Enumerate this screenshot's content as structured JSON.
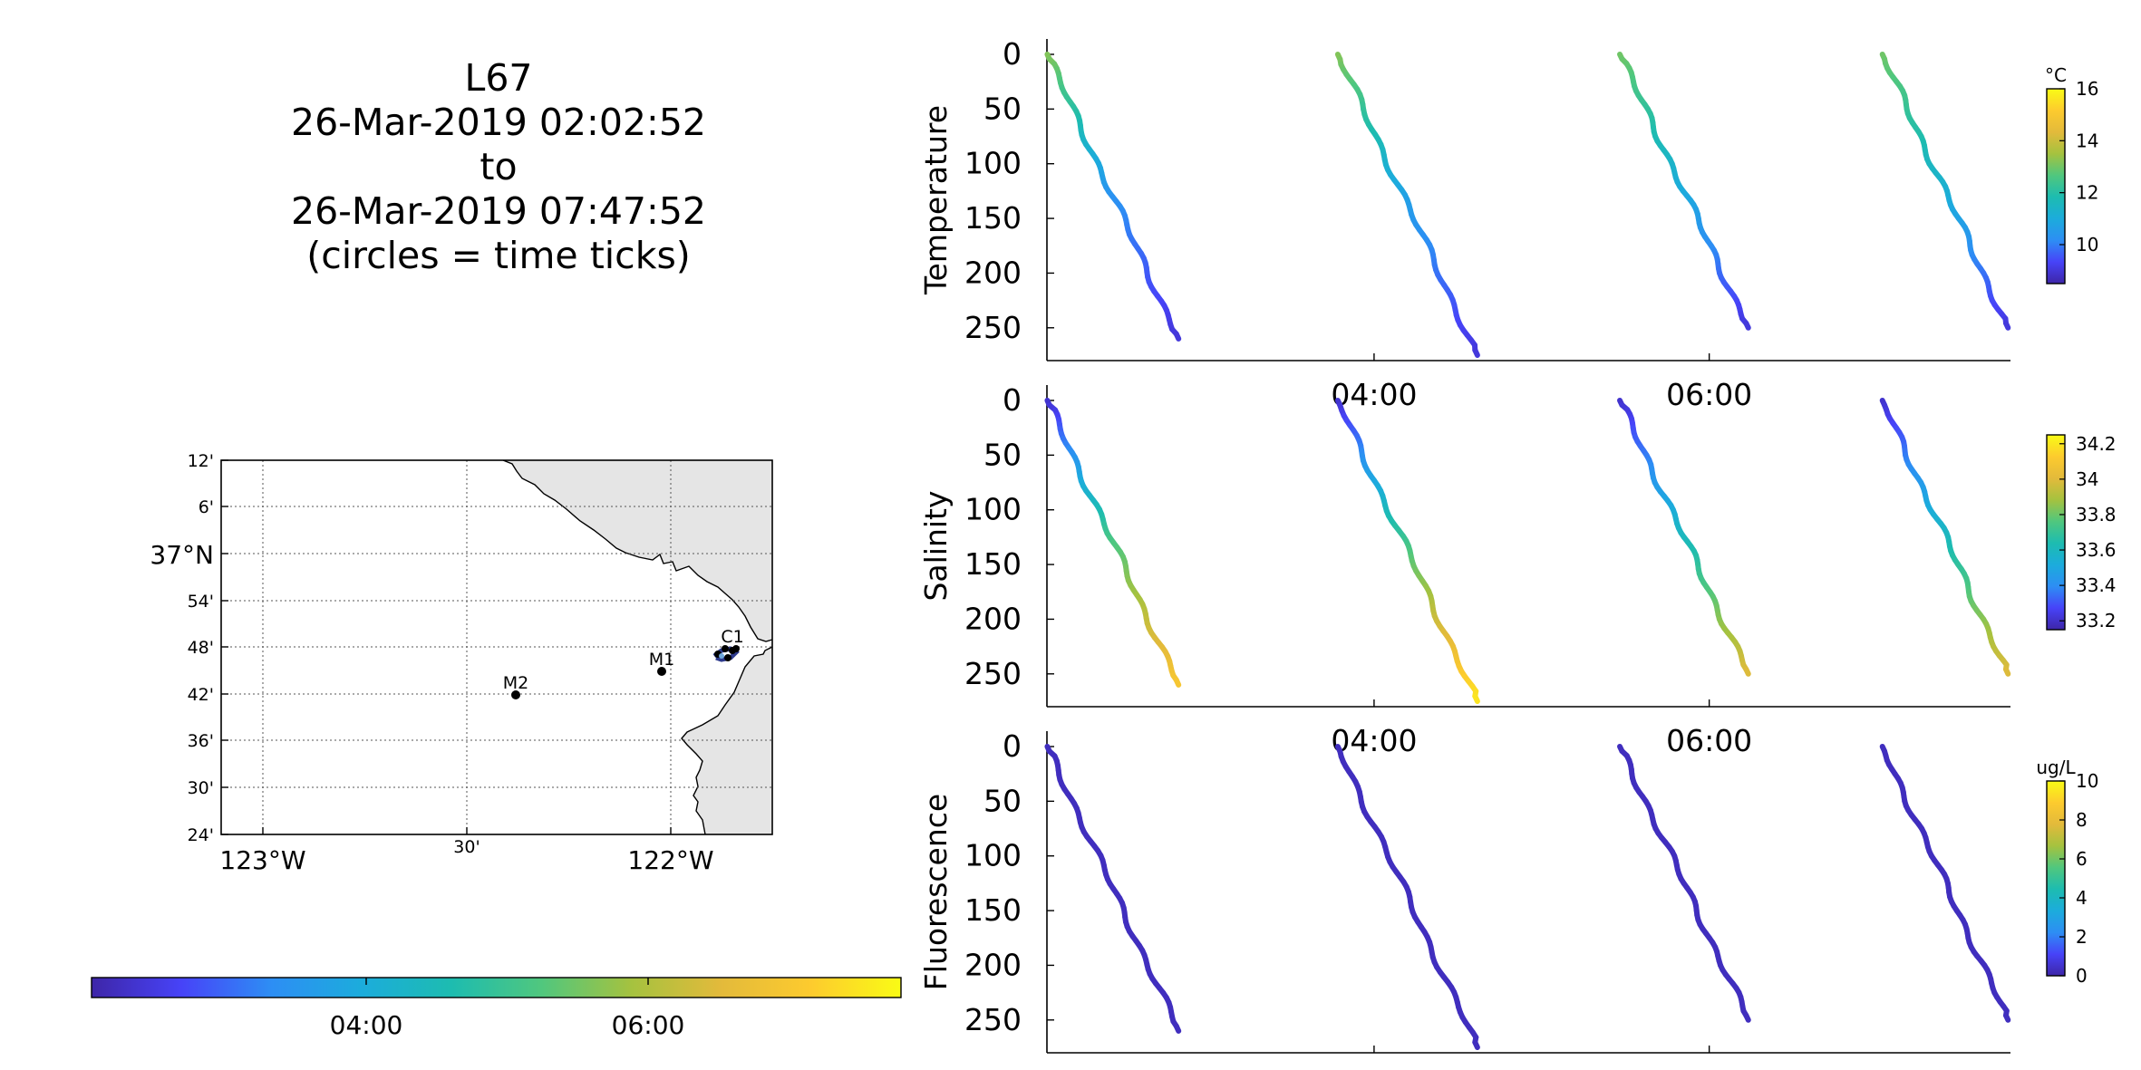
{
  "title_block": {
    "line1": "L67",
    "line2": "26-Mar-2019 02:02:52",
    "line3": "to",
    "line4": "26-Mar-2019 07:47:52",
    "line5": "(circles = time ticks)"
  },
  "colormap": [
    "#3e26a8",
    "#4743f8",
    "#2d8ef4",
    "#1cacdc",
    "#1dbcb0",
    "#50c77e",
    "#a5c23f",
    "#e3ba3b",
    "#fdcb2e",
    "#f9fb15"
  ],
  "map": {
    "lat_ticks": [
      "12'",
      "6'",
      "37°N",
      "54'",
      "48'",
      "42'",
      "36'",
      "30'",
      "24'"
    ],
    "lon_ticks": [
      "123°W",
      "30'",
      "122°W"
    ],
    "stations": [
      {
        "label": "M2"
      },
      {
        "label": "M1"
      },
      {
        "label": "C1"
      }
    ],
    "land_color": "#e5e5e5"
  },
  "time_colorbar": {
    "ticks": [
      "04:00",
      "06:00"
    ]
  },
  "chart_data": [
    {
      "type": "scatter",
      "name": "temperature-panel",
      "ylabel": "Temperature",
      "xlabel": "",
      "x_ticks": [
        "04:00",
        "06:00"
      ],
      "y_ticks": [
        0,
        50,
        100,
        150,
        200,
        250
      ],
      "ylim": [
        280,
        0
      ],
      "xlim": [
        "02:02:52",
        "07:47:52"
      ],
      "color_var": "temperature",
      "colorbar": {
        "unit": "°C",
        "ticks": [
          10,
          12,
          14,
          16
        ],
        "range": [
          8.5,
          16
        ]
      },
      "series": [
        {
          "x": [
            "02:03",
            "02:50"
          ],
          "y": [
            0,
            260
          ],
          "c": [
            13.2,
            10.3,
            9
          ]
        },
        {
          "x": [
            "03:47",
            "04:37"
          ],
          "y": [
            0,
            275
          ],
          "c": [
            13.2,
            10.6,
            9
          ]
        },
        {
          "x": [
            "05:28",
            "06:14"
          ],
          "y": [
            0,
            250
          ],
          "c": [
            13.0,
            11.0,
            9
          ]
        },
        {
          "x": [
            "07:02",
            "07:47"
          ],
          "y": [
            0,
            250
          ],
          "c": [
            13.0,
            11.2,
            9
          ]
        }
      ]
    },
    {
      "type": "scatter",
      "name": "salinity-panel",
      "ylabel": "Salinity",
      "xlabel": "",
      "x_ticks": [
        "04:00",
        "06:00"
      ],
      "y_ticks": [
        0,
        50,
        100,
        150,
        200,
        250
      ],
      "ylim": [
        280,
        0
      ],
      "xlim": [
        "02:02:52",
        "07:47:52"
      ],
      "color_var": "salinity",
      "colorbar": {
        "unit": "",
        "ticks": [
          33.2,
          33.4,
          33.6,
          33.8,
          34,
          34.2
        ],
        "range": [
          33.15,
          34.25
        ]
      },
      "series": [
        {
          "x": [
            "02:03",
            "02:50"
          ],
          "y": [
            0,
            260
          ],
          "c": [
            33.2,
            33.75,
            34.1
          ]
        },
        {
          "x": [
            "03:47",
            "04:37"
          ],
          "y": [
            0,
            275
          ],
          "c": [
            33.2,
            33.75,
            34.2
          ]
        },
        {
          "x": [
            "05:28",
            "06:14"
          ],
          "y": [
            0,
            250
          ],
          "c": [
            33.2,
            33.6,
            34.0
          ]
        },
        {
          "x": [
            "07:02",
            "07:47"
          ],
          "y": [
            0,
            250
          ],
          "c": [
            33.2,
            33.6,
            34.0
          ]
        }
      ]
    },
    {
      "type": "scatter",
      "name": "fluorescence-panel",
      "ylabel": "Fluorescence",
      "xlabel": "",
      "x_ticks": [
        "04:00",
        "06:00"
      ],
      "y_ticks": [
        0,
        50,
        100,
        150,
        200,
        250
      ],
      "ylim": [
        280,
        0
      ],
      "xlim": [
        "02:02:52",
        "07:47:52"
      ],
      "color_var": "fluorescence",
      "colorbar": {
        "unit": "ug/L",
        "ticks": [
          0,
          2,
          4,
          6,
          8,
          10
        ],
        "range": [
          0,
          10
        ]
      },
      "series": [
        {
          "x": [
            "02:03",
            "02:50"
          ],
          "y": [
            0,
            260
          ],
          "c": [
            0.3,
            0.3,
            0.3
          ]
        },
        {
          "x": [
            "03:47",
            "04:37"
          ],
          "y": [
            0,
            275
          ],
          "c": [
            0.3,
            0.3,
            0.3
          ]
        },
        {
          "x": [
            "05:28",
            "06:14"
          ],
          "y": [
            0,
            250
          ],
          "c": [
            0.3,
            0.3,
            0.3
          ]
        },
        {
          "x": [
            "07:02",
            "07:47"
          ],
          "y": [
            0,
            250
          ],
          "c": [
            0.3,
            0.3,
            0.3
          ]
        }
      ]
    }
  ]
}
